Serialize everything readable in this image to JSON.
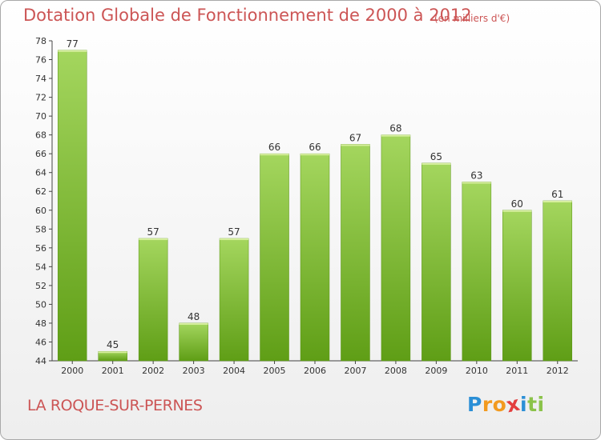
{
  "header": {
    "title": "Dotation Globale de Fonctionnement de 2000 à 2012",
    "subtitle": "(en milliers d'€)"
  },
  "footer": {
    "commune": "LA ROQUE-SUR-PERNES",
    "logo_letters": [
      "P",
      "r",
      "o",
      "x",
      "i",
      "t",
      "i"
    ],
    "logo_colors": [
      "#2b8fd6",
      "#f29a1f",
      "#f29a1f",
      "#e33d3d",
      "#2b8fd6",
      "#8bc34a",
      "#8bc34a"
    ]
  },
  "chart_data": {
    "type": "bar",
    "categories": [
      "2000",
      "2001",
      "2002",
      "2003",
      "2004",
      "2005",
      "2006",
      "2007",
      "2008",
      "2009",
      "2010",
      "2011",
      "2012"
    ],
    "values": [
      77,
      45,
      57,
      48,
      57,
      66,
      66,
      67,
      68,
      65,
      63,
      60,
      61
    ],
    "ylim": [
      44,
      78
    ],
    "yticks": [
      44,
      46,
      48,
      50,
      52,
      54,
      56,
      58,
      60,
      62,
      64,
      66,
      68,
      70,
      72,
      74,
      76,
      78
    ],
    "grid": false,
    "colors": {
      "bar_light": "#a4d65e",
      "bar_dark": "#5f9e16",
      "label": "#333333"
    }
  }
}
